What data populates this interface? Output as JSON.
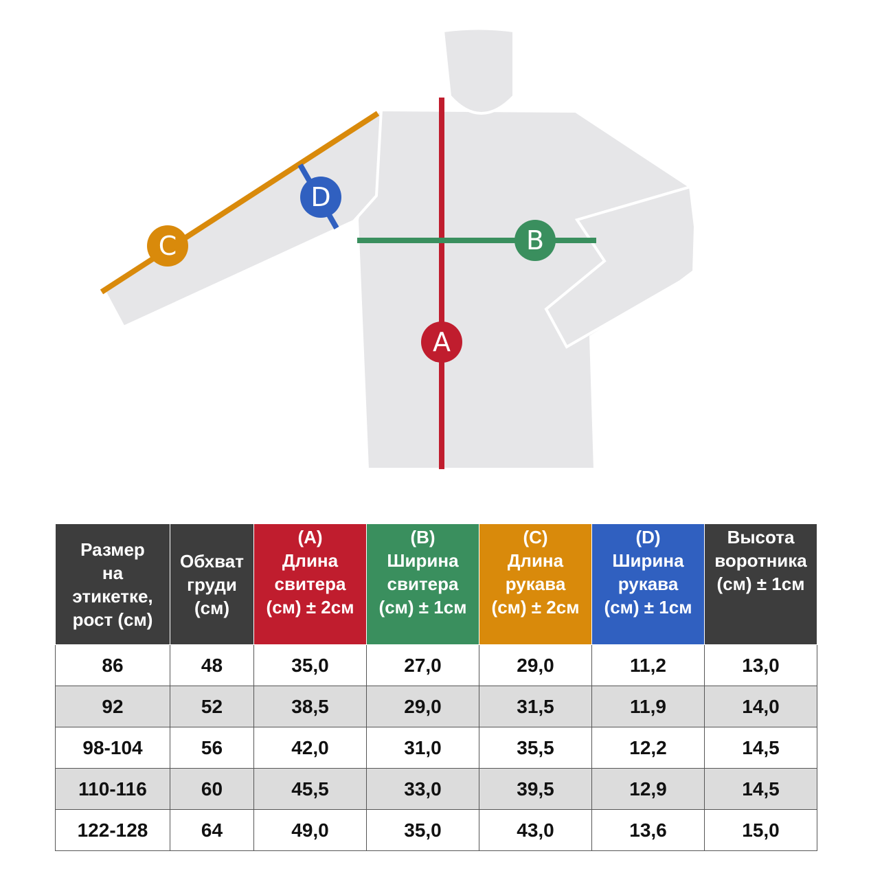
{
  "diagram": {
    "labels": [
      "A",
      "B",
      "C",
      "D"
    ]
  },
  "table": {
    "header": [
      [
        "Размер",
        "на",
        "этикетке,",
        "рост (см)"
      ],
      [
        "Обхват",
        "груди",
        "(см)"
      ],
      [
        "(A)",
        "Длина",
        "свитера",
        "(см) ± 2см"
      ],
      [
        "(B)",
        "Ширина",
        "свитера",
        "(см) ± 1см"
      ],
      [
        "(C)",
        "Длина",
        "рукава",
        "(см) ± 2см"
      ],
      [
        "(D)",
        "Ширина",
        "рукава",
        "(см) ± 1см"
      ],
      [
        "Высота",
        "воротника",
        "(см) ± 1см"
      ]
    ],
    "rows": [
      [
        "86",
        "48",
        "35,0",
        "27,0",
        "29,0",
        "11,2",
        "13,0"
      ],
      [
        "92",
        "52",
        "38,5",
        "29,0",
        "31,5",
        "11,9",
        "14,0"
      ],
      [
        "98-104",
        "56",
        "42,0",
        "31,0",
        "35,5",
        "12,2",
        "14,5"
      ],
      [
        "110-116",
        "60",
        "45,5",
        "33,0",
        "39,5",
        "12,9",
        "14,5"
      ],
      [
        "122-128",
        "64",
        "49,0",
        "35,0",
        "43,0",
        "13,6",
        "15,0"
      ]
    ]
  }
}
